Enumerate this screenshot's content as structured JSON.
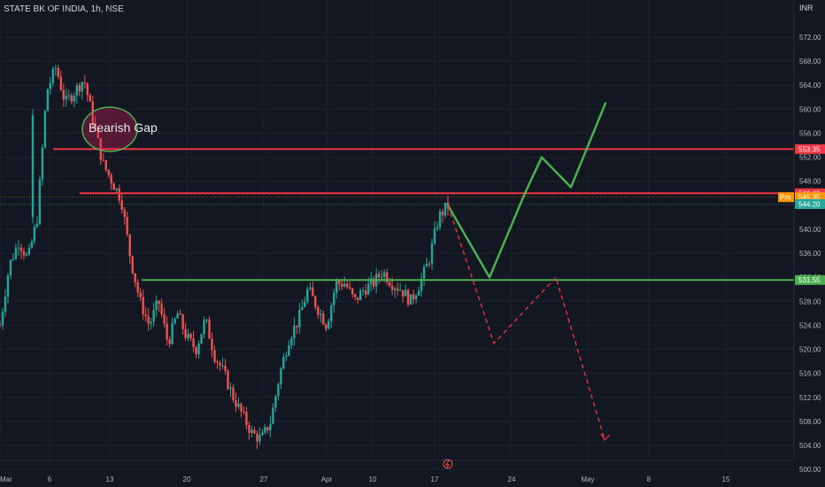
{
  "header": {
    "symbol_label": "STATE BK OF INDIA, 1h, NSE",
    "currency": "INR"
  },
  "colors": {
    "background": "#131722",
    "up_candle": "#26a69a",
    "down_candle": "#ef5350",
    "resistance_line": "#f23645",
    "support_line": "#4caf50",
    "bull_path": "#4caf50",
    "bear_path": "#f23645",
    "last_price_badge": "#26a69a",
    "pre_badge": "#ff9800"
  },
  "chart_data": {
    "type": "candlestick",
    "ylim": [
      500,
      575
    ],
    "y_ticks": [
      500,
      504,
      508,
      512,
      516,
      520,
      524,
      528,
      532,
      536,
      540,
      544,
      548,
      552,
      556,
      560,
      564,
      568,
      572
    ],
    "y_tick_labels": [
      "500.00",
      "504.00",
      "508.00",
      "512.00",
      "516.00",
      "520.00",
      "524.00",
      "528.00",
      "532.00",
      "536.00",
      "540.00",
      "544.00",
      "548.00",
      "552.00",
      "556.00",
      "560.00",
      "564.00",
      "568.00",
      "572.00"
    ],
    "x_tick_labels": [
      "Mar",
      "6",
      "13",
      "20",
      "27",
      "Apr",
      "10",
      "17",
      "24",
      "May",
      "8",
      "15"
    ],
    "price_path": [
      {
        "x": "Mar",
        "y": 524
      },
      {
        "x": "Mar 2",
        "y": 534
      },
      {
        "x": "Mar 3",
        "y": 538
      },
      {
        "x": "Mar 4",
        "y": 535
      },
      {
        "x": "Mar 5",
        "y": 542
      },
      {
        "x": "6",
        "y": 563
      },
      {
        "x": "6b",
        "y": 567
      },
      {
        "x": "7",
        "y": 561
      },
      {
        "x": "8",
        "y": 563
      },
      {
        "x": "9",
        "y": 565
      },
      {
        "x": "10",
        "y": 558
      },
      {
        "x": "11",
        "y": 551
      },
      {
        "x": "12",
        "y": 548
      },
      {
        "x": "13",
        "y": 545
      },
      {
        "x": "14",
        "y": 535
      },
      {
        "x": "15",
        "y": 528
      },
      {
        "x": "16",
        "y": 524
      },
      {
        "x": "17",
        "y": 528
      },
      {
        "x": "18",
        "y": 521
      },
      {
        "x": "19",
        "y": 526
      },
      {
        "x": "20",
        "y": 522
      },
      {
        "x": "21",
        "y": 520
      },
      {
        "x": "22",
        "y": 525
      },
      {
        "x": "23",
        "y": 519
      },
      {
        "x": "24",
        "y": 516
      },
      {
        "x": "25",
        "y": 512
      },
      {
        "x": "26",
        "y": 509
      },
      {
        "x": "27",
        "y": 506
      },
      {
        "x": "28",
        "y": 505
      },
      {
        "x": "29",
        "y": 508
      },
      {
        "x": "30",
        "y": 516
      },
      {
        "x": "31",
        "y": 522
      },
      {
        "x": "Apr",
        "y": 525
      },
      {
        "x": "Apr 2",
        "y": 530
      },
      {
        "x": "Apr 3",
        "y": 527
      },
      {
        "x": "Apr 4",
        "y": 524
      },
      {
        "x": "Apr 6",
        "y": 531
      },
      {
        "x": "Apr 7",
        "y": 531
      },
      {
        "x": "Apr 8",
        "y": 528
      },
      {
        "x": "Apr 9",
        "y": 530
      },
      {
        "x": "10",
        "y": 531
      },
      {
        "x": "Apr 11",
        "y": 533
      },
      {
        "x": "Apr 12",
        "y": 531
      },
      {
        "x": "Apr 13",
        "y": 530
      },
      {
        "x": "Apr 14",
        "y": 528
      },
      {
        "x": "Apr 15",
        "y": 531
      },
      {
        "x": "Apr 16",
        "y": 535
      },
      {
        "x": "17",
        "y": 542
      },
      {
        "x": "Apr 18",
        "y": 544
      }
    ],
    "levels": [
      {
        "name": "resistance_upper",
        "value": 553.35,
        "label": "553.35",
        "color": "#f23645"
      },
      {
        "name": "resistance_lower",
        "value": 546.0,
        "label": "546.00",
        "color": "#f23645"
      },
      {
        "name": "support",
        "value": 531.55,
        "label": "531.55",
        "color": "#4caf50"
      }
    ],
    "price_badges": [
      {
        "label": "553.35",
        "value": 553.35,
        "color": "#f23645"
      },
      {
        "label": "546.00",
        "value": 546.0,
        "color": "#f23645"
      },
      {
        "label": "545.35",
        "value": 545.35,
        "color": "#ff9800",
        "tag": "Pre"
      },
      {
        "label": "544.20",
        "value": 544.2,
        "color": "#26a69a"
      },
      {
        "label": "531.55",
        "value": 531.55,
        "color": "#4caf50"
      }
    ],
    "annotations": [
      {
        "text": "Bearish Gap"
      }
    ],
    "projection_bullish": [
      {
        "x": "Apr 18",
        "y": 544
      },
      {
        "x": "Apr 22",
        "y": 532
      },
      {
        "x": "Apr 26",
        "y": 546
      },
      {
        "x": "Apr 28",
        "y": 552
      },
      {
        "x": "Apr 30",
        "y": 547
      },
      {
        "x": "May 3",
        "y": 561
      }
    ],
    "projection_bearish": [
      {
        "x": "Apr 18",
        "y": 544
      },
      {
        "x": "Apr 22",
        "y": 521
      },
      {
        "x": "Apr 28",
        "y": 532
      },
      {
        "x": "May 3",
        "y": 505
      }
    ]
  }
}
